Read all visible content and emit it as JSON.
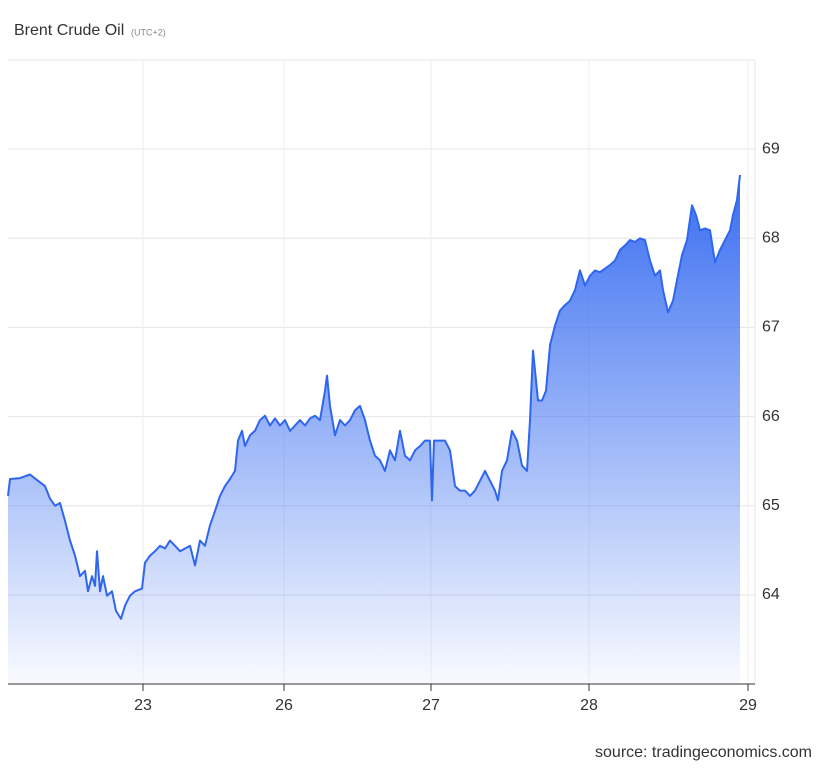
{
  "chart_data": {
    "type": "area",
    "title": "Brent Crude Oil",
    "subtitle": "(UTC+2)",
    "source": "source: tradingeconomics.com",
    "color": "#2f66f0",
    "grid": true,
    "xlim": [
      0,
      747
    ],
    "ylim": [
      63,
      70
    ],
    "yticks": [
      64,
      65,
      66,
      67,
      68,
      69
    ],
    "xticks": [
      {
        "value": 135,
        "label": "23"
      },
      {
        "value": 276,
        "label": "26"
      },
      {
        "value": 423,
        "label": "27"
      },
      {
        "value": 581,
        "label": "28"
      },
      {
        "value": 740,
        "label": "29"
      }
    ],
    "x": [
      0,
      2,
      12,
      22,
      30,
      37,
      42,
      47,
      52,
      57,
      62,
      67,
      72,
      77,
      80,
      84,
      87,
      89,
      92,
      95,
      99,
      104,
      108,
      113,
      117,
      122,
      127,
      134,
      137,
      142,
      147,
      152,
      157,
      162,
      167,
      172,
      177,
      182,
      187,
      192,
      197,
      202,
      207,
      212,
      217,
      222,
      227,
      230,
      234,
      237,
      242,
      247,
      252,
      257,
      262,
      267,
      272,
      277,
      282,
      287,
      292,
      297,
      302,
      307,
      312,
      317,
      319,
      322,
      327,
      332,
      337,
      342,
      347,
      352,
      357,
      362,
      367,
      372,
      377,
      382,
      387,
      392,
      397,
      402,
      407,
      412,
      417,
      422,
      424,
      426,
      432,
      437,
      442,
      447,
      452,
      457,
      462,
      467,
      472,
      477,
      482,
      487,
      490,
      494,
      499,
      504,
      509,
      514,
      519,
      522,
      525,
      527,
      530,
      534,
      538,
      542,
      547,
      552,
      557,
      562,
      567,
      572,
      577,
      582,
      587,
      592,
      597,
      602,
      607,
      612,
      617,
      622,
      627,
      632,
      637,
      642,
      647,
      652,
      655,
      660,
      665,
      669,
      674,
      679,
      684,
      688,
      692,
      697,
      702,
      707,
      712,
      717,
      722,
      725,
      729,
      732
    ],
    "values": [
      65.11,
      65.3,
      65.31,
      65.35,
      65.28,
      65.22,
      65.08,
      65.0,
      65.03,
      64.83,
      64.61,
      64.44,
      64.21,
      64.27,
      64.04,
      64.21,
      64.1,
      64.49,
      64.04,
      64.21,
      63.99,
      64.04,
      63.82,
      63.73,
      63.88,
      63.99,
      64.04,
      64.07,
      64.36,
      64.44,
      64.49,
      64.55,
      64.52,
      64.61,
      64.55,
      64.49,
      64.52,
      64.55,
      64.33,
      64.61,
      64.55,
      64.78,
      64.94,
      65.11,
      65.22,
      65.3,
      65.39,
      65.73,
      65.84,
      65.67,
      65.79,
      65.84,
      65.96,
      66.01,
      65.9,
      65.98,
      65.9,
      65.96,
      65.84,
      65.9,
      65.96,
      65.9,
      65.98,
      66.01,
      65.96,
      66.29,
      66.46,
      66.12,
      65.79,
      65.96,
      65.9,
      65.96,
      66.07,
      66.12,
      65.96,
      65.73,
      65.56,
      65.51,
      65.39,
      65.62,
      65.51,
      65.84,
      65.56,
      65.51,
      65.62,
      65.67,
      65.73,
      65.73,
      65.06,
      65.73,
      65.73,
      65.73,
      65.62,
      65.22,
      65.17,
      65.17,
      65.11,
      65.17,
      65.28,
      65.39,
      65.28,
      65.17,
      65.06,
      65.39,
      65.51,
      65.84,
      65.73,
      65.45,
      65.39,
      65.96,
      66.74,
      66.52,
      66.18,
      66.18,
      66.29,
      66.8,
      67.02,
      67.19,
      67.25,
      67.3,
      67.42,
      67.64,
      67.47,
      67.58,
      67.64,
      67.62,
      67.66,
      67.7,
      67.75,
      67.87,
      67.92,
      67.98,
      67.96,
      68.0,
      67.98,
      67.75,
      67.58,
      67.64,
      67.42,
      67.17,
      67.3,
      67.53,
      67.81,
      67.98,
      68.37,
      68.26,
      68.09,
      68.11,
      68.09,
      67.73,
      67.87,
      67.98,
      68.09,
      68.26,
      68.43,
      68.71
    ]
  }
}
